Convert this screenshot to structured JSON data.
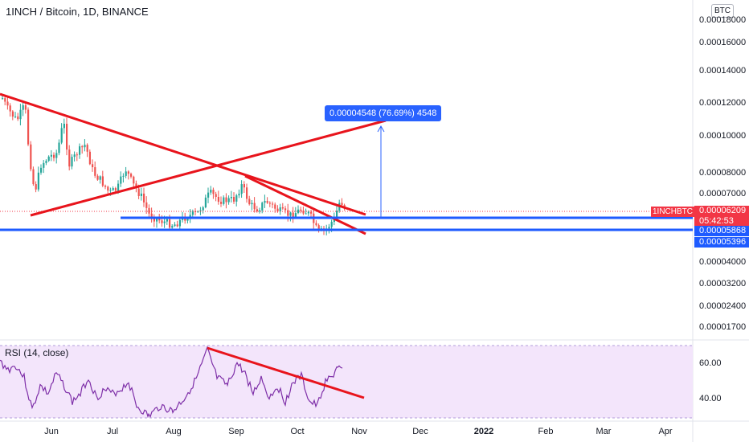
{
  "header": {
    "title": "1INCH / Bitcoin, 1D, BINANCE",
    "currency_button": "BTC"
  },
  "price_axis": {
    "labels": [
      "0.00018000",
      "0.00016000",
      "0.00014000",
      "0.00012000",
      "0.00010000",
      "0.00008000",
      "0.00007000",
      "0.00004000",
      "0.00003200",
      "0.00002400",
      "0.00001700"
    ],
    "current_price": "0.00006209",
    "countdown": "05:42:53",
    "level_upper": "0.00005868",
    "level_lower": "0.00005396",
    "symbol_tag": "1INCHBTC"
  },
  "rsi": {
    "label": "RSI (14, close)",
    "axis_labels": [
      "60.00",
      "40.00"
    ]
  },
  "time_axis": {
    "labels": [
      "Jun",
      "Jul",
      "Aug",
      "Sep",
      "Oct",
      "Nov",
      "Dec",
      "2022",
      "Feb",
      "Mar",
      "Apr"
    ]
  },
  "measure": {
    "label": "0.00004548 (76.69%) 4548"
  },
  "colors": {
    "up": "#26a69a",
    "down": "#ef5350",
    "trendline": "#e8141c",
    "level": "#1e5bff",
    "measure": "#2962ff",
    "rsi_line": "#7e2fa8",
    "rsi_band": "#f3e5fb"
  }
}
